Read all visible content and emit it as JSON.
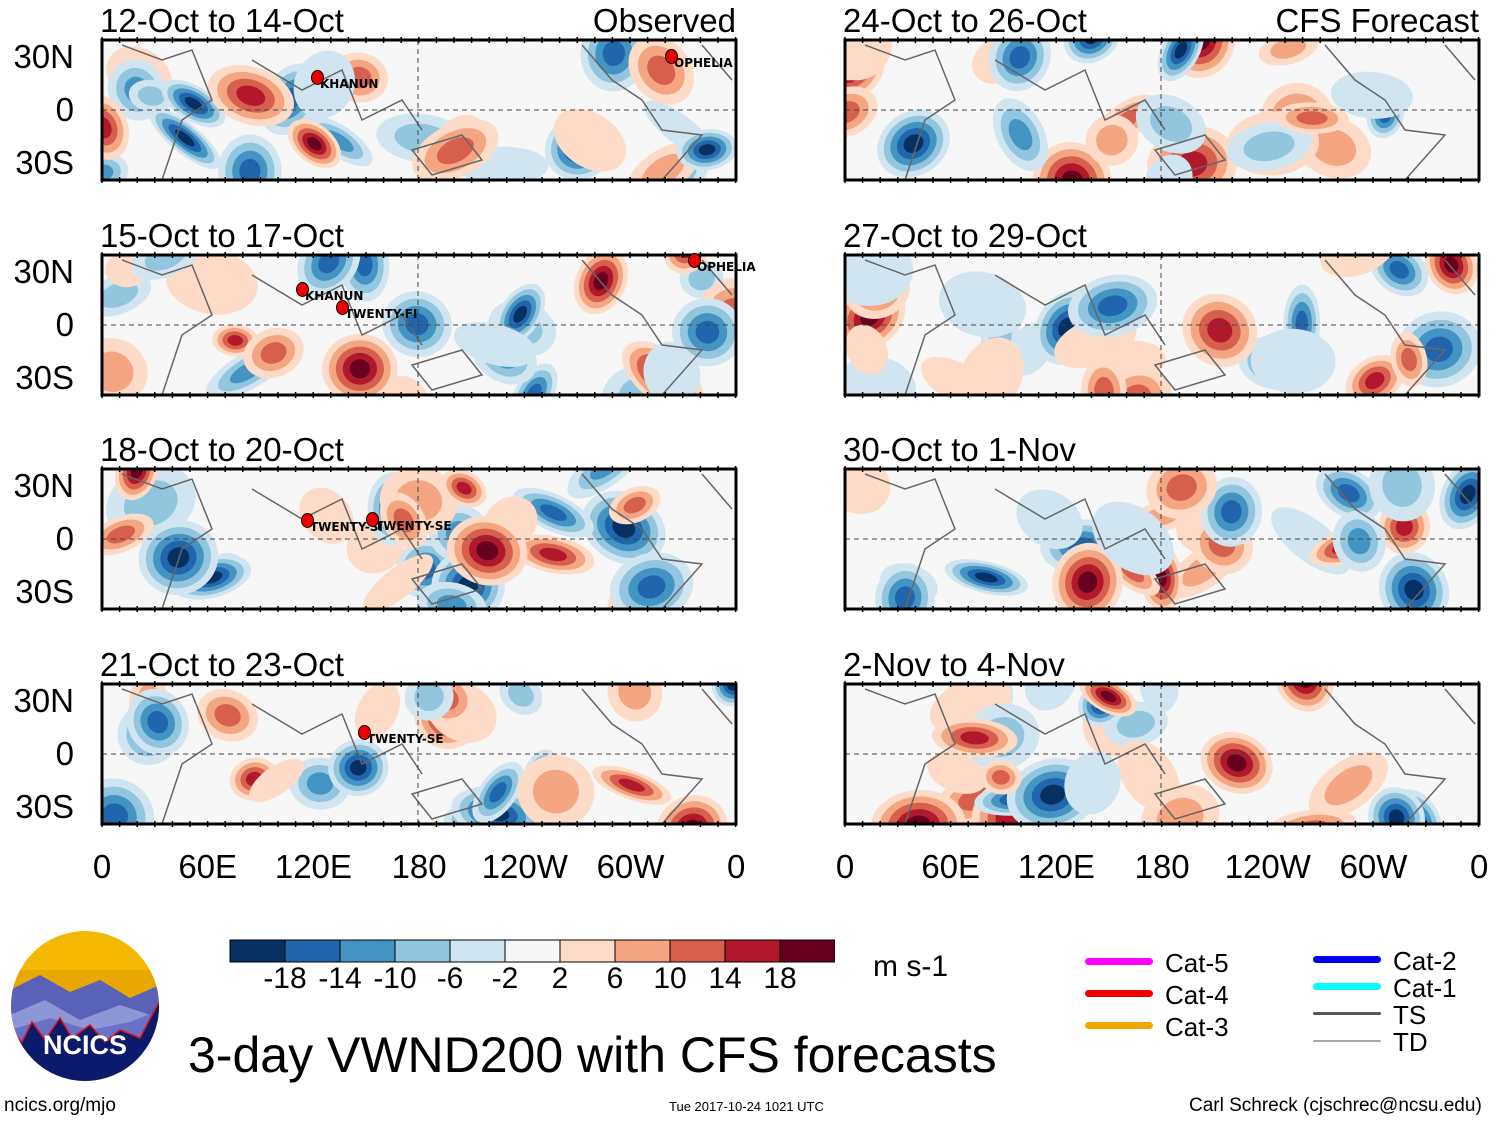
{
  "title": "3-day VWND200 with CFS forecasts",
  "observed_label": "Observed",
  "forecast_label": "CFS Forecast",
  "panels": [
    {
      "title": "12-Oct to 14-Oct",
      "group": "observed",
      "storms": [
        "KHANUN",
        "OPHELIA"
      ]
    },
    {
      "title": "15-Oct to 17-Oct",
      "group": "observed",
      "storms": [
        "KHANUN",
        "TWENTY-FI",
        "OPHELIA"
      ]
    },
    {
      "title": "18-Oct to 20-Oct",
      "group": "observed",
      "storms": [
        "TWENTY-SI",
        "TWENTY-SE"
      ]
    },
    {
      "title": "21-Oct to 23-Oct",
      "group": "observed",
      "storms": [
        "TWENTY-SE"
      ]
    },
    {
      "title": "24-Oct to 26-Oct",
      "group": "forecast",
      "storms": []
    },
    {
      "title": "27-Oct to 29-Oct",
      "group": "forecast",
      "storms": []
    },
    {
      "title": "30-Oct to 1-Nov",
      "group": "forecast",
      "storms": []
    },
    {
      "title": "2-Nov to 4-Nov",
      "group": "forecast",
      "storms": []
    }
  ],
  "lat_labels": [
    "30N",
    "0",
    "30S"
  ],
  "lon_labels": [
    "0",
    "60E",
    "120E",
    "180",
    "120W",
    "60W",
    "0"
  ],
  "colorbar": {
    "colors": [
      "#053061",
      "#2166ac",
      "#4393c3",
      "#92c5de",
      "#d1e5f0",
      "#f7f7f7",
      "#fddbc7",
      "#f4a582",
      "#d6604d",
      "#b2182b",
      "#67001f"
    ],
    "labels": [
      "-18",
      "-14",
      "-10",
      "-6",
      "-2",
      "2",
      "6",
      "10",
      "14",
      "18"
    ],
    "units": "m s-1"
  },
  "legend": [
    {
      "label": "Cat-5",
      "color": "#ff00ff"
    },
    {
      "label": "Cat-4",
      "color": "#ee0000"
    },
    {
      "label": "Cat-3",
      "color": "#f0a800"
    },
    {
      "label": "Cat-2",
      "color": "#0000ee"
    },
    {
      "label": "Cat-1",
      "color": "#00ffff"
    },
    {
      "label": "TS",
      "color": "#555555"
    },
    {
      "label": "TD",
      "color": "#aaaaaa"
    }
  ],
  "logo_text": "NCICS",
  "footer": {
    "url": "ncics.org/mjo",
    "timestamp": "Tue 2017-10-24 1021 UTC",
    "author": "Carl Schreck (cjschrec@ncsu.edu)"
  }
}
